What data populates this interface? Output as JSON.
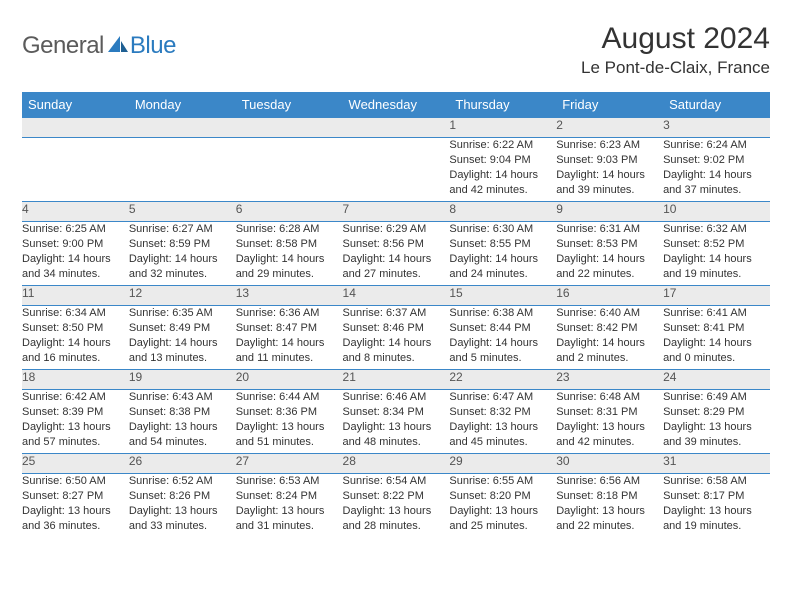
{
  "logo": {
    "general": "General",
    "blue": "Blue"
  },
  "title": "August 2024",
  "location": "Le Pont-de-Claix, France",
  "colors": {
    "header_bg": "#3b87c8",
    "header_text": "#ffffff",
    "daynum_bg": "#ebebeb",
    "border": "#3b87c8",
    "body_text": "#333333",
    "logo_gray": "#5b5b5b",
    "logo_blue": "#2b7bbf"
  },
  "weekdays": [
    "Sunday",
    "Monday",
    "Tuesday",
    "Wednesday",
    "Thursday",
    "Friday",
    "Saturday"
  ],
  "weeks": [
    [
      null,
      null,
      null,
      null,
      {
        "n": "1",
        "sr": "Sunrise: 6:22 AM",
        "ss": "Sunset: 9:04 PM",
        "dl": "Daylight: 14 hours and 42 minutes."
      },
      {
        "n": "2",
        "sr": "Sunrise: 6:23 AM",
        "ss": "Sunset: 9:03 PM",
        "dl": "Daylight: 14 hours and 39 minutes."
      },
      {
        "n": "3",
        "sr": "Sunrise: 6:24 AM",
        "ss": "Sunset: 9:02 PM",
        "dl": "Daylight: 14 hours and 37 minutes."
      }
    ],
    [
      {
        "n": "4",
        "sr": "Sunrise: 6:25 AM",
        "ss": "Sunset: 9:00 PM",
        "dl": "Daylight: 14 hours and 34 minutes."
      },
      {
        "n": "5",
        "sr": "Sunrise: 6:27 AM",
        "ss": "Sunset: 8:59 PM",
        "dl": "Daylight: 14 hours and 32 minutes."
      },
      {
        "n": "6",
        "sr": "Sunrise: 6:28 AM",
        "ss": "Sunset: 8:58 PM",
        "dl": "Daylight: 14 hours and 29 minutes."
      },
      {
        "n": "7",
        "sr": "Sunrise: 6:29 AM",
        "ss": "Sunset: 8:56 PM",
        "dl": "Daylight: 14 hours and 27 minutes."
      },
      {
        "n": "8",
        "sr": "Sunrise: 6:30 AM",
        "ss": "Sunset: 8:55 PM",
        "dl": "Daylight: 14 hours and 24 minutes."
      },
      {
        "n": "9",
        "sr": "Sunrise: 6:31 AM",
        "ss": "Sunset: 8:53 PM",
        "dl": "Daylight: 14 hours and 22 minutes."
      },
      {
        "n": "10",
        "sr": "Sunrise: 6:32 AM",
        "ss": "Sunset: 8:52 PM",
        "dl": "Daylight: 14 hours and 19 minutes."
      }
    ],
    [
      {
        "n": "11",
        "sr": "Sunrise: 6:34 AM",
        "ss": "Sunset: 8:50 PM",
        "dl": "Daylight: 14 hours and 16 minutes."
      },
      {
        "n": "12",
        "sr": "Sunrise: 6:35 AM",
        "ss": "Sunset: 8:49 PM",
        "dl": "Daylight: 14 hours and 13 minutes."
      },
      {
        "n": "13",
        "sr": "Sunrise: 6:36 AM",
        "ss": "Sunset: 8:47 PM",
        "dl": "Daylight: 14 hours and 11 minutes."
      },
      {
        "n": "14",
        "sr": "Sunrise: 6:37 AM",
        "ss": "Sunset: 8:46 PM",
        "dl": "Daylight: 14 hours and 8 minutes."
      },
      {
        "n": "15",
        "sr": "Sunrise: 6:38 AM",
        "ss": "Sunset: 8:44 PM",
        "dl": "Daylight: 14 hours and 5 minutes."
      },
      {
        "n": "16",
        "sr": "Sunrise: 6:40 AM",
        "ss": "Sunset: 8:42 PM",
        "dl": "Daylight: 14 hours and 2 minutes."
      },
      {
        "n": "17",
        "sr": "Sunrise: 6:41 AM",
        "ss": "Sunset: 8:41 PM",
        "dl": "Daylight: 14 hours and 0 minutes."
      }
    ],
    [
      {
        "n": "18",
        "sr": "Sunrise: 6:42 AM",
        "ss": "Sunset: 8:39 PM",
        "dl": "Daylight: 13 hours and 57 minutes."
      },
      {
        "n": "19",
        "sr": "Sunrise: 6:43 AM",
        "ss": "Sunset: 8:38 PM",
        "dl": "Daylight: 13 hours and 54 minutes."
      },
      {
        "n": "20",
        "sr": "Sunrise: 6:44 AM",
        "ss": "Sunset: 8:36 PM",
        "dl": "Daylight: 13 hours and 51 minutes."
      },
      {
        "n": "21",
        "sr": "Sunrise: 6:46 AM",
        "ss": "Sunset: 8:34 PM",
        "dl": "Daylight: 13 hours and 48 minutes."
      },
      {
        "n": "22",
        "sr": "Sunrise: 6:47 AM",
        "ss": "Sunset: 8:32 PM",
        "dl": "Daylight: 13 hours and 45 minutes."
      },
      {
        "n": "23",
        "sr": "Sunrise: 6:48 AM",
        "ss": "Sunset: 8:31 PM",
        "dl": "Daylight: 13 hours and 42 minutes."
      },
      {
        "n": "24",
        "sr": "Sunrise: 6:49 AM",
        "ss": "Sunset: 8:29 PM",
        "dl": "Daylight: 13 hours and 39 minutes."
      }
    ],
    [
      {
        "n": "25",
        "sr": "Sunrise: 6:50 AM",
        "ss": "Sunset: 8:27 PM",
        "dl": "Daylight: 13 hours and 36 minutes."
      },
      {
        "n": "26",
        "sr": "Sunrise: 6:52 AM",
        "ss": "Sunset: 8:26 PM",
        "dl": "Daylight: 13 hours and 33 minutes."
      },
      {
        "n": "27",
        "sr": "Sunrise: 6:53 AM",
        "ss": "Sunset: 8:24 PM",
        "dl": "Daylight: 13 hours and 31 minutes."
      },
      {
        "n": "28",
        "sr": "Sunrise: 6:54 AM",
        "ss": "Sunset: 8:22 PM",
        "dl": "Daylight: 13 hours and 28 minutes."
      },
      {
        "n": "29",
        "sr": "Sunrise: 6:55 AM",
        "ss": "Sunset: 8:20 PM",
        "dl": "Daylight: 13 hours and 25 minutes."
      },
      {
        "n": "30",
        "sr": "Sunrise: 6:56 AM",
        "ss": "Sunset: 8:18 PM",
        "dl": "Daylight: 13 hours and 22 minutes."
      },
      {
        "n": "31",
        "sr": "Sunrise: 6:58 AM",
        "ss": "Sunset: 8:17 PM",
        "dl": "Daylight: 13 hours and 19 minutes."
      }
    ]
  ]
}
